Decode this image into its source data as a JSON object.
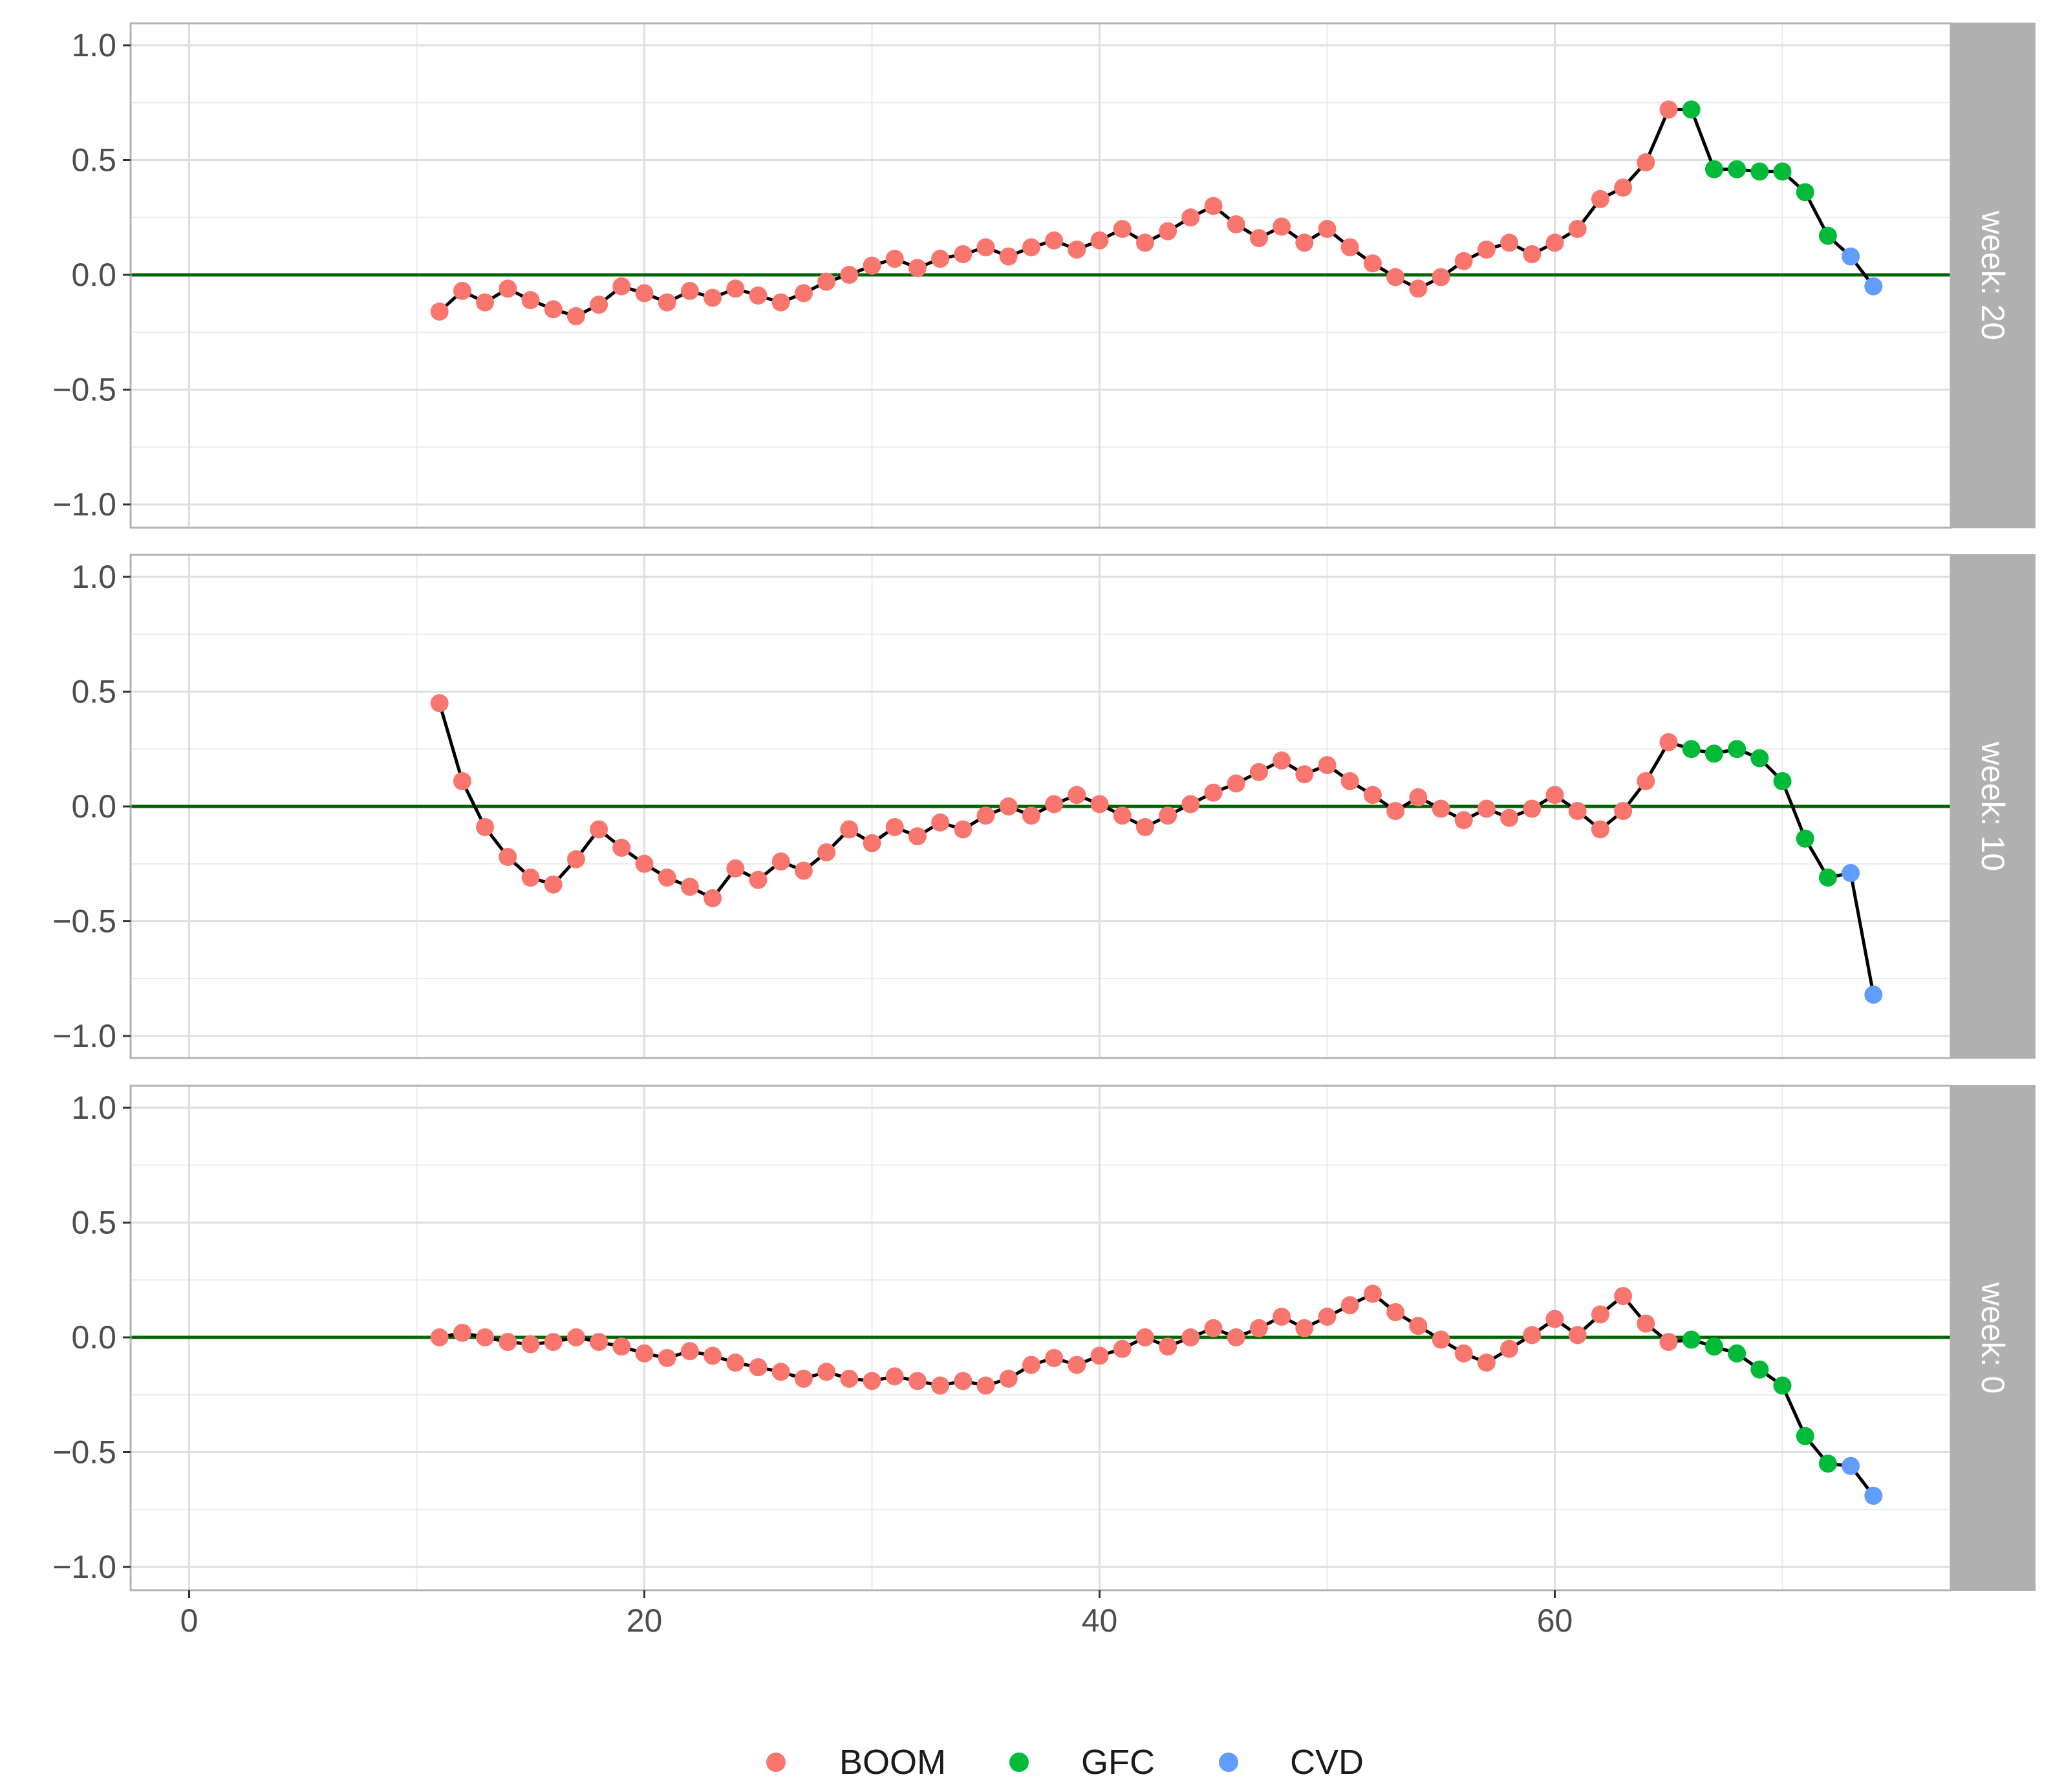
{
  "chart_data": {
    "type": "line",
    "facets": [
      {
        "label": "week: 20",
        "start_x": 11,
        "values": [
          -0.16,
          -0.07,
          -0.12,
          -0.06,
          -0.11,
          -0.15,
          -0.18,
          -0.13,
          -0.05,
          -0.08,
          -0.12,
          -0.07,
          -0.1,
          -0.06,
          -0.09,
          -0.12,
          -0.08,
          -0.03,
          0.0,
          0.04,
          0.07,
          0.03,
          0.07,
          0.09,
          0.12,
          0.08,
          0.12,
          0.15,
          0.11,
          0.15,
          0.2,
          0.14,
          0.19,
          0.25,
          0.3,
          0.22,
          0.16,
          0.21,
          0.14,
          0.2,
          0.12,
          0.05,
          -0.01,
          -0.06,
          -0.01,
          0.06,
          0.11,
          0.14,
          0.09,
          0.14,
          0.2,
          0.33,
          0.38,
          0.49,
          0.72,
          0.72,
          0.46,
          0.46,
          0.45,
          0.45,
          0.36,
          0.17,
          0.08,
          -0.05
        ]
      },
      {
        "label": "week: 10",
        "start_x": 11,
        "values": [
          0.45,
          0.11,
          -0.09,
          -0.22,
          -0.31,
          -0.34,
          -0.23,
          -0.1,
          -0.18,
          -0.25,
          -0.31,
          -0.35,
          -0.4,
          -0.27,
          -0.32,
          -0.24,
          -0.28,
          -0.2,
          -0.1,
          -0.16,
          -0.09,
          -0.13,
          -0.07,
          -0.1,
          -0.04,
          0.0,
          -0.04,
          0.01,
          0.05,
          0.01,
          -0.04,
          -0.09,
          -0.04,
          0.01,
          0.06,
          0.1,
          0.15,
          0.2,
          0.14,
          0.18,
          0.11,
          0.05,
          -0.02,
          0.04,
          -0.01,
          -0.06,
          -0.01,
          -0.05,
          -0.01,
          0.05,
          -0.02,
          -0.1,
          -0.02,
          0.11,
          0.28,
          0.25,
          0.23,
          0.25,
          0.21,
          0.11,
          -0.14,
          -0.31,
          -0.29,
          -0.82
        ]
      },
      {
        "label": "week: 0",
        "start_x": 11,
        "values": [
          0.0,
          0.02,
          0.0,
          -0.02,
          -0.03,
          -0.02,
          0.0,
          -0.02,
          -0.04,
          -0.07,
          -0.09,
          -0.06,
          -0.08,
          -0.11,
          -0.13,
          -0.15,
          -0.18,
          -0.15,
          -0.18,
          -0.19,
          -0.17,
          -0.19,
          -0.21,
          -0.19,
          -0.21,
          -0.18,
          -0.12,
          -0.09,
          -0.12,
          -0.08,
          -0.05,
          0.0,
          -0.04,
          0.0,
          0.04,
          0.0,
          0.04,
          0.09,
          0.04,
          0.09,
          0.14,
          0.19,
          0.11,
          0.05,
          -0.01,
          -0.07,
          -0.11,
          -0.05,
          0.01,
          0.08,
          0.01,
          0.1,
          0.18,
          0.06,
          -0.02,
          -0.01,
          -0.04,
          -0.07,
          -0.14,
          -0.21,
          -0.43,
          -0.55,
          -0.56,
          -0.69
        ]
      }
    ],
    "period_boundaries": {
      "BOOM": [
        11,
        65
      ],
      "GFC": [
        66,
        72
      ],
      "CVD": [
        73,
        74
      ]
    },
    "series": [
      {
        "name": "BOOM",
        "color": "#F8766D"
      },
      {
        "name": "GFC",
        "color": "#00BA38"
      },
      {
        "name": "CVD",
        "color": "#619CFF"
      }
    ],
    "x_ticks": [
      "0",
      "20",
      "40",
      "60"
    ],
    "y_ticks": [
      "1.0",
      "0.5",
      "0.0",
      "−0.5",
      "−1.0"
    ],
    "xlim": [
      -2.5,
      77.5
    ],
    "ylim": [
      -1.1,
      1.1
    ],
    "reference_line": {
      "y": 0,
      "color": "#006400"
    },
    "line_color": "#000000",
    "legend": {
      "position": "bottom"
    },
    "grid": true
  }
}
